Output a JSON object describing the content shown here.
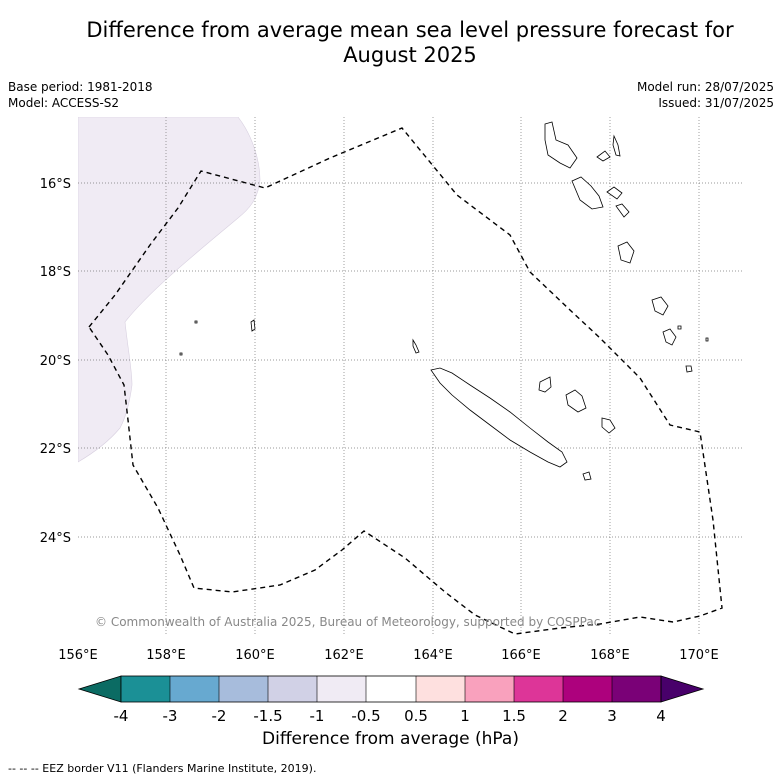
{
  "title_line1": "Difference from average mean sea level pressure forecast for",
  "title_line2": "August 2025",
  "base_period": "Base period: 1981-2018",
  "model": "Model: ACCESS-S2",
  "model_run": "Model run: 28/07/2025",
  "issued": "Issued: 31/07/2025",
  "copyright": "© Commonwealth of Australia 2025, Bureau of Meteorology, supported by COSPPac",
  "lat_labels": [
    "16°S",
    "18°S",
    "20°S",
    "22°S",
    "24°S"
  ],
  "lon_labels": [
    "156°E",
    "158°E",
    "160°E",
    "162°E",
    "164°E",
    "166°E",
    "168°E",
    "170°E"
  ],
  "colorbar": {
    "title": "Difference from average (hPa)",
    "tick_labels": [
      "-4",
      "-3",
      "-2",
      "-1.5",
      "-1",
      "-0.5",
      "0.5",
      "1",
      "1.5",
      "2",
      "3",
      "4"
    ],
    "colors": [
      "#0b6b63",
      "#1b9096",
      "#67a9d0",
      "#a7bcdc",
      "#d1d1e6",
      "#f0ebf4",
      "#ffffff",
      "#fee0df",
      "#f9a1bd",
      "#dd3598",
      "#ad017d",
      "#7a0177",
      "#48006a"
    ]
  },
  "footnote": "--  --  -- EEZ border V11 (Flanders Marine Institute, 2019).",
  "map_shading": {
    "value_range": "-1 to -0.5",
    "color": "#f0ebf4"
  }
}
